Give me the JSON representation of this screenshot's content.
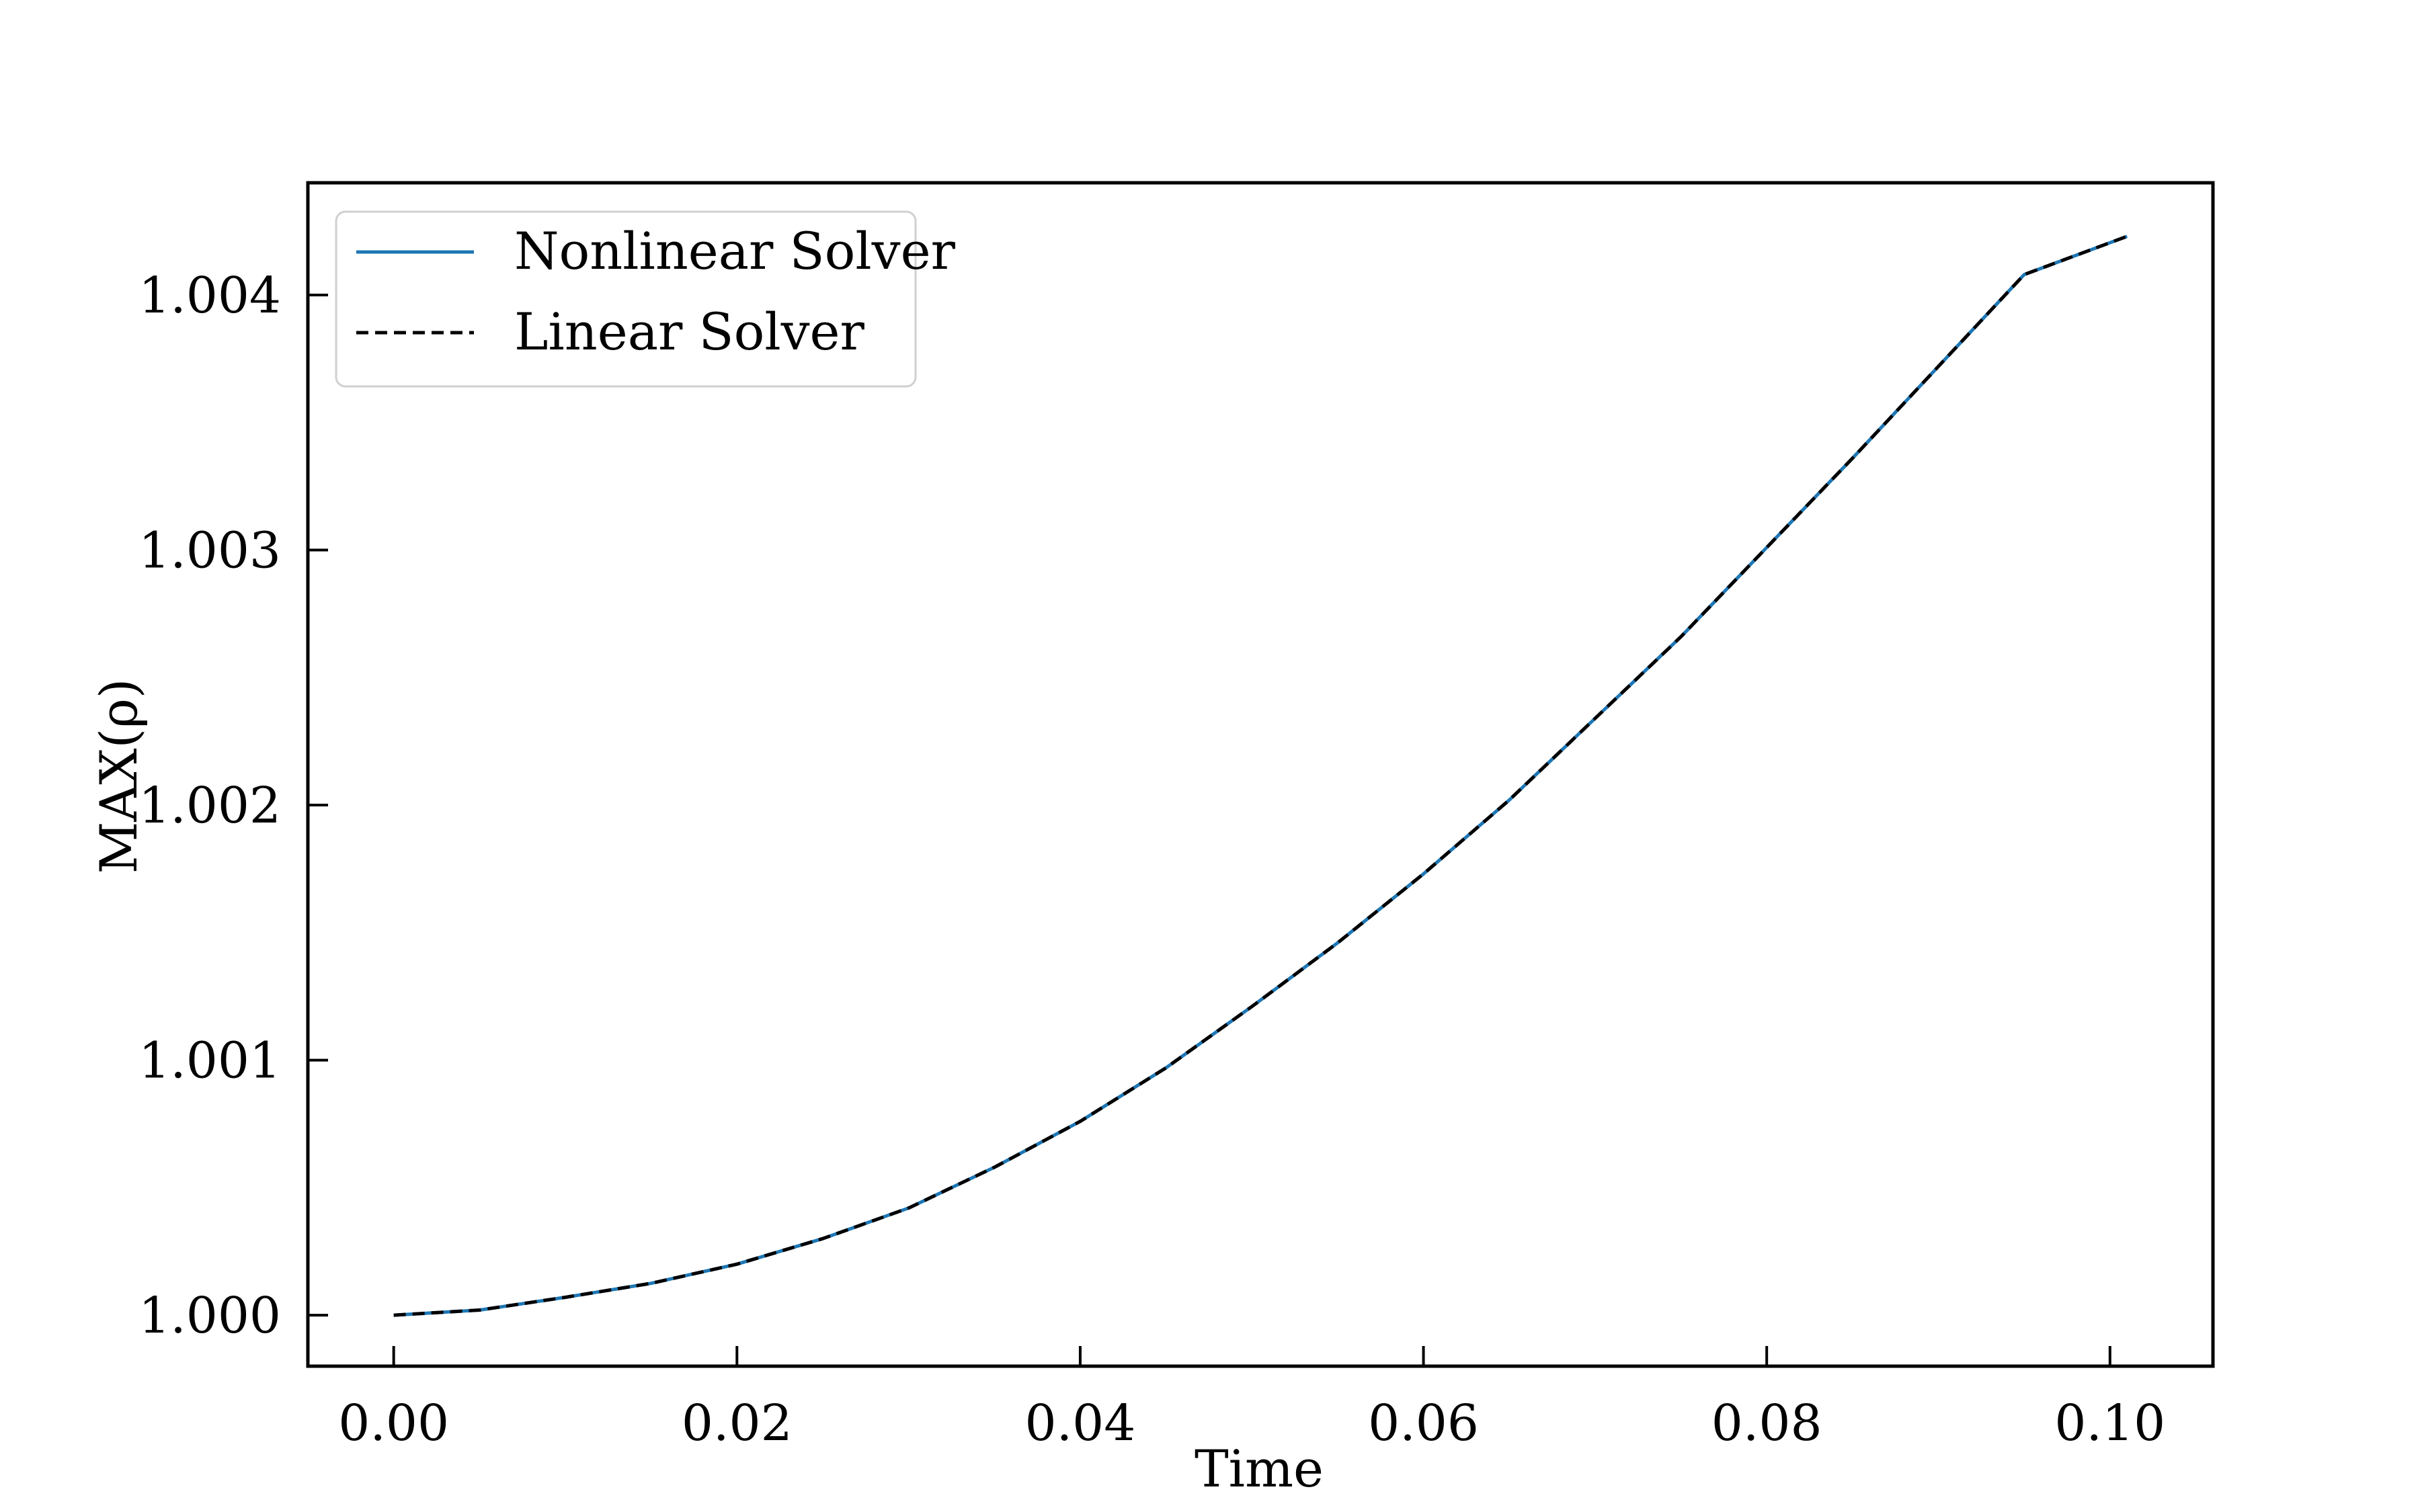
{
  "chart_data": {
    "type": "line",
    "title": "",
    "xlabel": "Time",
    "ylabel": "MAX(ρ)",
    "xlim": [
      -0.005,
      0.106
    ],
    "ylim": [
      0.9998,
      1.00444
    ],
    "xticks": [
      0.0,
      0.02,
      0.04,
      0.06,
      0.08,
      0.1
    ],
    "xtick_labels": [
      "0.00",
      "0.02",
      "0.04",
      "0.06",
      "0.08",
      "0.10"
    ],
    "yticks": [
      1.0,
      1.001,
      1.002,
      1.003,
      1.004
    ],
    "ytick_labels": [
      "1.000",
      "1.001",
      "1.002",
      "1.003",
      "1.004"
    ],
    "grid": false,
    "legend_position": "top-left",
    "x": [
      0.0,
      0.005,
      0.01,
      0.015,
      0.02,
      0.025,
      0.03,
      0.035,
      0.04,
      0.045,
      0.05,
      0.055,
      0.06,
      0.065,
      0.07,
      0.075,
      0.08,
      0.085,
      0.09,
      0.095,
      0.101
    ],
    "series": [
      {
        "name": "Nonlinear Solver",
        "color": "#1f77b4",
        "style": "solid",
        "values": [
          1.0,
          1.00002,
          1.00007,
          1.000125,
          1.0002,
          1.0003,
          1.00042,
          1.00058,
          1.00076,
          1.00097,
          1.00121,
          1.00146,
          1.00173,
          1.00202,
          1.00234,
          1.00266,
          1.00301,
          1.00336,
          1.00372,
          1.00408,
          1.00423
        ]
      },
      {
        "name": "Linear Solver",
        "color": "#000000",
        "style": "dashed",
        "values": [
          1.0,
          1.00002,
          1.00007,
          1.000125,
          1.0002,
          1.0003,
          1.00042,
          1.00058,
          1.00076,
          1.00097,
          1.00121,
          1.00146,
          1.00173,
          1.00202,
          1.00234,
          1.00266,
          1.00301,
          1.00336,
          1.00372,
          1.00408,
          1.00423
        ]
      }
    ]
  }
}
